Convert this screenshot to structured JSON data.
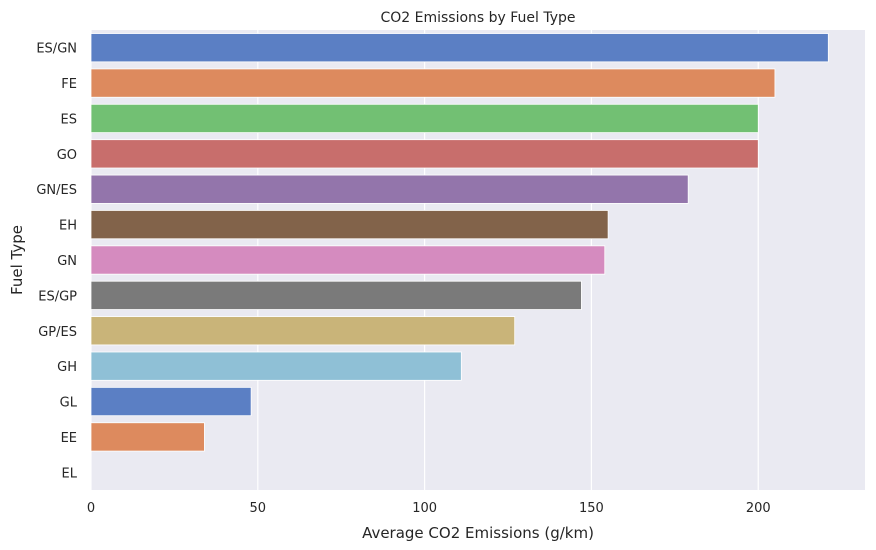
{
  "chart_data": {
    "type": "bar",
    "orientation": "horizontal",
    "title": "CO2 Emissions by Fuel Type",
    "xlabel": "Average CO2 Emissions (g/km)",
    "ylabel": "Fuel Type",
    "xlim": [
      0,
      232
    ],
    "xticks": [
      0,
      50,
      100,
      150,
      200
    ],
    "grid": true,
    "categories": [
      "ES/GN",
      "FE",
      "ES",
      "GO",
      "GN/ES",
      "EH",
      "GN",
      "ES/GP",
      "GP/ES",
      "GH",
      "GL",
      "EE",
      "EL"
    ],
    "values": [
      221,
      205,
      200,
      200,
      179,
      155,
      154,
      147,
      127,
      111,
      48,
      34,
      0
    ],
    "colors": [
      "#5b7fc4",
      "#dd8a5e",
      "#72c073",
      "#c86e6c",
      "#9375ab",
      "#82634a",
      "#d58bbf",
      "#7a7a7a",
      "#c9b479",
      "#8fc0d6",
      "#5b7fc4",
      "#dd8a5e",
      "#72c073"
    ]
  }
}
